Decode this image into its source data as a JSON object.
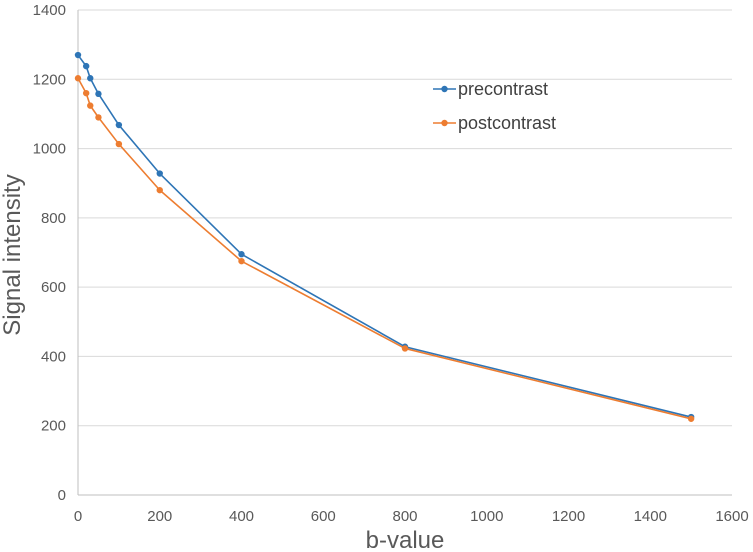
{
  "chart_data": {
    "type": "line",
    "title": "",
    "xlabel": "b-value",
    "ylabel": "Signal intensity",
    "xlim": [
      0,
      1600
    ],
    "ylim": [
      0,
      1400
    ],
    "xticks": [
      0,
      200,
      400,
      600,
      800,
      1000,
      1200,
      1400,
      1600
    ],
    "yticks": [
      0,
      200,
      400,
      600,
      800,
      1000,
      1200,
      1400
    ],
    "grid": "horizontal",
    "legend_position": "upper-right-inside",
    "series": [
      {
        "name": "precontrast",
        "color": "#2e75b6",
        "x": [
          0,
          20,
          30,
          50,
          100,
          200,
          400,
          800,
          1500
        ],
        "y": [
          1270,
          1238,
          1203,
          1158,
          1068,
          928,
          695,
          428,
          225
        ]
      },
      {
        "name": "postcontrast",
        "color": "#ed7d31",
        "x": [
          0,
          20,
          30,
          50,
          100,
          200,
          400,
          800,
          1500
        ],
        "y": [
          1203,
          1160,
          1124,
          1090,
          1013,
          880,
          675,
          423,
          220
        ]
      }
    ]
  }
}
